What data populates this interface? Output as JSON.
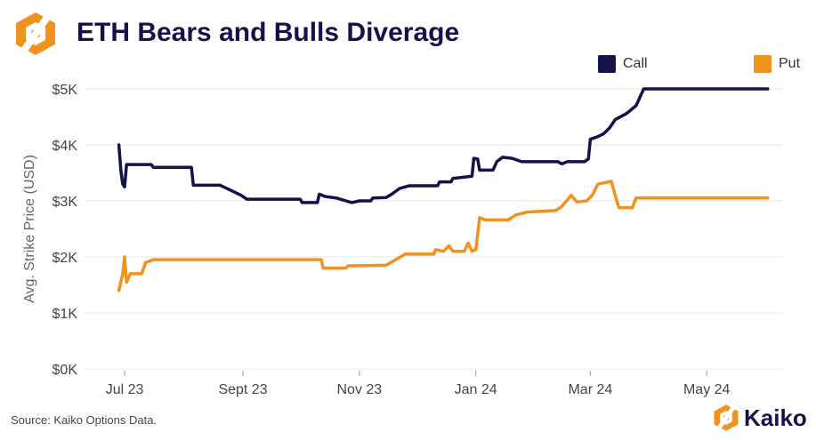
{
  "header": {
    "title": "ETH Bears and Bulls Diverage"
  },
  "footer": {
    "source": "Source: Kaiko Options Data.",
    "brand": "Kaiko"
  },
  "colors": {
    "call": "#14124a",
    "put": "#f0921e",
    "logo": "#f0921e",
    "grid": "#e6e6e6"
  },
  "chart_data": {
    "type": "line",
    "title": "ETH Bears and Bulls Diverage",
    "ylabel": "Avg. Strike Price (USD)",
    "xlabel": "",
    "ylim": [
      0,
      5000
    ],
    "y_ticks": [
      0,
      1000,
      2000,
      3000,
      4000,
      5000
    ],
    "y_tick_labels": [
      "$0K",
      "$1K",
      "$2K",
      "$3K",
      "$4K",
      "$5K"
    ],
    "x_range": [
      "2023-06-10",
      "2024-06-10"
    ],
    "x_ticks": [
      "2023-07-01",
      "2023-09-01",
      "2023-11-01",
      "2024-01-01",
      "2024-03-01",
      "2024-05-01"
    ],
    "x_tick_labels": [
      "Jul 23",
      "Sept 23",
      "Nov 23",
      "Jan 24",
      "Mar 24",
      "May 24"
    ],
    "grid": "horizontal",
    "legend": "top-right",
    "series": [
      {
        "name": "Call",
        "color": "#14124a",
        "points": [
          [
            "2023-06-28",
            4000
          ],
          [
            "2023-06-29",
            3550
          ],
          [
            "2023-06-30",
            3300
          ],
          [
            "2023-07-01",
            3250
          ],
          [
            "2023-07-02",
            3650
          ],
          [
            "2023-07-15",
            3650
          ],
          [
            "2023-07-16",
            3600
          ],
          [
            "2023-08-05",
            3600
          ],
          [
            "2023-08-06",
            3280
          ],
          [
            "2023-08-20",
            3280
          ],
          [
            "2023-08-25",
            3200
          ],
          [
            "2023-08-31",
            3100
          ],
          [
            "2023-09-03",
            3030
          ],
          [
            "2023-10-01",
            3030
          ],
          [
            "2023-10-02",
            2970
          ],
          [
            "2023-10-10",
            2970
          ],
          [
            "2023-10-11",
            3120
          ],
          [
            "2023-10-14",
            3080
          ],
          [
            "2023-10-20",
            3050
          ],
          [
            "2023-10-25",
            3000
          ],
          [
            "2023-10-28",
            2970
          ],
          [
            "2023-11-01",
            3000
          ],
          [
            "2023-11-07",
            3000
          ],
          [
            "2023-11-08",
            3050
          ],
          [
            "2023-11-15",
            3060
          ],
          [
            "2023-11-18",
            3120
          ],
          [
            "2023-11-22",
            3220
          ],
          [
            "2023-11-27",
            3270
          ],
          [
            "2023-12-12",
            3270
          ],
          [
            "2023-12-13",
            3340
          ],
          [
            "2023-12-19",
            3340
          ],
          [
            "2023-12-20",
            3400
          ],
          [
            "2023-12-30",
            3440
          ],
          [
            "2023-12-31",
            3760
          ],
          [
            "2024-01-02",
            3750
          ],
          [
            "2024-01-03",
            3550
          ],
          [
            "2024-01-10",
            3550
          ],
          [
            "2024-01-12",
            3700
          ],
          [
            "2024-01-15",
            3780
          ],
          [
            "2024-01-20",
            3760
          ],
          [
            "2024-01-25",
            3700
          ],
          [
            "2024-02-13",
            3700
          ],
          [
            "2024-02-15",
            3660
          ],
          [
            "2024-02-18",
            3700
          ],
          [
            "2024-02-27",
            3700
          ],
          [
            "2024-02-29",
            3750
          ],
          [
            "2024-03-01",
            4100
          ],
          [
            "2024-03-05",
            4150
          ],
          [
            "2024-03-08",
            4200
          ],
          [
            "2024-03-11",
            4300
          ],
          [
            "2024-03-14",
            4450
          ],
          [
            "2024-03-20",
            4560
          ],
          [
            "2024-03-25",
            4700
          ],
          [
            "2024-03-29",
            5000
          ],
          [
            "2024-04-02",
            5000
          ],
          [
            "2024-06-02",
            5000
          ]
        ]
      },
      {
        "name": "Put",
        "color": "#f0921e",
        "points": [
          [
            "2023-06-28",
            1400
          ],
          [
            "2023-06-30",
            1700
          ],
          [
            "2023-07-01",
            2000
          ],
          [
            "2023-07-02",
            1550
          ],
          [
            "2023-07-04",
            1700
          ],
          [
            "2023-07-10",
            1700
          ],
          [
            "2023-07-12",
            1900
          ],
          [
            "2023-07-16",
            1950
          ],
          [
            "2023-10-12",
            1950
          ],
          [
            "2023-10-13",
            1800
          ],
          [
            "2023-10-25",
            1800
          ],
          [
            "2023-10-26",
            1840
          ],
          [
            "2023-11-15",
            1850
          ],
          [
            "2023-11-20",
            1950
          ],
          [
            "2023-11-25",
            2050
          ],
          [
            "2023-12-10",
            2050
          ],
          [
            "2023-12-11",
            2130
          ],
          [
            "2023-12-15",
            2100
          ],
          [
            "2023-12-18",
            2200
          ],
          [
            "2023-12-20",
            2100
          ],
          [
            "2023-12-26",
            2100
          ],
          [
            "2023-12-28",
            2250
          ],
          [
            "2023-12-30",
            2100
          ],
          [
            "2024-01-01",
            2130
          ],
          [
            "2024-01-03",
            2700
          ],
          [
            "2024-01-06",
            2660
          ],
          [
            "2024-01-18",
            2660
          ],
          [
            "2024-01-22",
            2750
          ],
          [
            "2024-01-28",
            2800
          ],
          [
            "2024-02-12",
            2830
          ],
          [
            "2024-02-15",
            2900
          ],
          [
            "2024-02-20",
            3100
          ],
          [
            "2024-02-23",
            2980
          ],
          [
            "2024-02-28",
            3000
          ],
          [
            "2024-03-02",
            3100
          ],
          [
            "2024-03-05",
            3300
          ],
          [
            "2024-03-12",
            3350
          ],
          [
            "2024-03-14",
            3100
          ],
          [
            "2024-03-16",
            2880
          ],
          [
            "2024-03-23",
            2880
          ],
          [
            "2024-03-25",
            3050
          ],
          [
            "2024-06-02",
            3050
          ]
        ]
      }
    ]
  }
}
